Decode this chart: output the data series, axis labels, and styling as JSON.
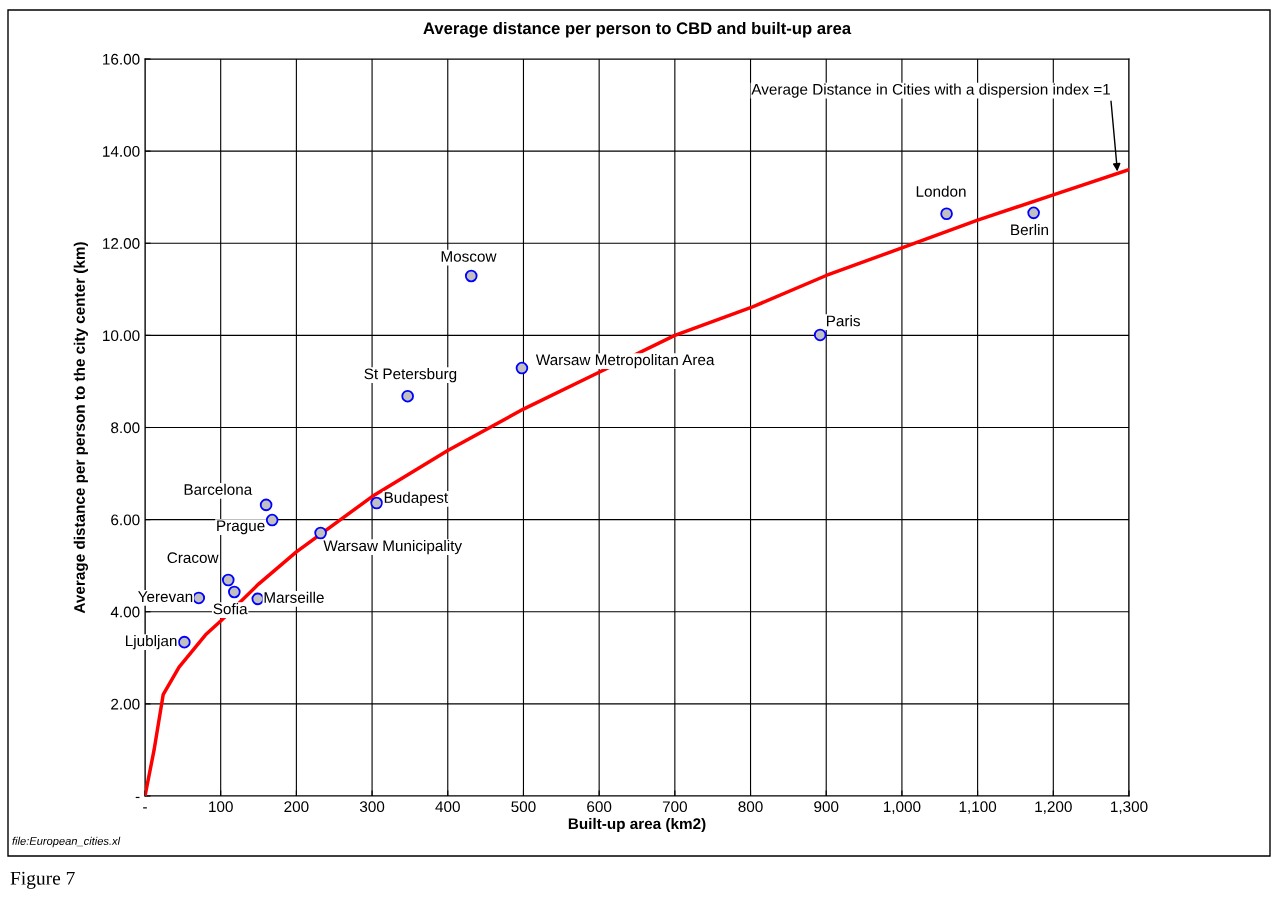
{
  "chart_data": {
    "type": "scatter",
    "title": "Average distance per person to CBD and built-up area",
    "xlabel": "Built-up area (km2)",
    "ylabel": "Average distance per person to the city center (km)",
    "xlim": [
      0,
      1300
    ],
    "ylim": [
      0,
      16
    ],
    "xticks": [
      {
        "value": 0,
        "label": "-"
      },
      100,
      200,
      300,
      400,
      500,
      600,
      700,
      800,
      900,
      {
        "value": 1000,
        "label": "1,000"
      },
      {
        "value": 1100,
        "label": "1,100"
      },
      {
        "value": 1200,
        "label": "1,200"
      },
      {
        "value": 1300,
        "label": "1,300"
      }
    ],
    "yticks": [
      {
        "value": 0,
        "label": "-"
      },
      {
        "value": 2,
        "label": "2.00"
      },
      {
        "value": 4,
        "label": "4.00"
      },
      {
        "value": 6,
        "label": "6.00"
      },
      {
        "value": 8,
        "label": "8.00"
      },
      {
        "value": 10,
        "label": "10.00"
      },
      {
        "value": 12,
        "label": "12.00"
      },
      {
        "value": 14,
        "label": "14.00"
      },
      {
        "value": 16,
        "label": "16.00"
      }
    ],
    "grid": true,
    "legend": false,
    "series": [
      {
        "color": "#c0c0c0",
        "marker": "circle",
        "x": [
          52,
          71,
          110,
          118,
          149,
          160,
          168,
          232,
          306,
          347,
          431,
          498,
          892,
          1059,
          1174
        ],
        "values": [
          3.34,
          4.3,
          4.69,
          4.43,
          4.28,
          6.32,
          5.99,
          5.71,
          6.36,
          8.68,
          11.29,
          9.29,
          10.01,
          12.64,
          12.66
        ]
      },
      {
        "type": "line",
        "color": "#ff0000",
        "line_style": "solid",
        "marker": "none",
        "x": [
          0,
          12,
          24,
          45,
          80,
          100,
          150,
          200,
          300,
          400,
          500,
          600,
          700,
          800,
          900,
          1000,
          1100,
          1200,
          1300
        ],
        "values": [
          0,
          1.0,
          2.2,
          2.8,
          3.5,
          3.8,
          4.6,
          5.3,
          6.5,
          7.5,
          8.4,
          9.2,
          10.0,
          10.6,
          11.3,
          11.9,
          12.5,
          13.05,
          13.6
        ]
      }
    ],
    "annotations": [
      {
        "text": "Ljubljan",
        "x": 52,
        "y": 3.34
      },
      {
        "text": "Yerevan",
        "x": 71,
        "y": 4.3
      },
      {
        "text": "Cracow",
        "x": 110,
        "y": 4.69
      },
      {
        "text": "Sofia",
        "x": 118,
        "y": 4.43
      },
      {
        "text": "Marseille",
        "x": 149,
        "y": 4.28
      },
      {
        "text": "Barcelona",
        "x": 160,
        "y": 6.32
      },
      {
        "text": "Prague",
        "x": 168,
        "y": 5.99
      },
      {
        "text": "Warsaw Municipality",
        "x": 232,
        "y": 5.71
      },
      {
        "text": "Budapest",
        "x": 306,
        "y": 6.36
      },
      {
        "text": "St Petersburg",
        "x": 347,
        "y": 8.68
      },
      {
        "text": "Moscow",
        "x": 431,
        "y": 11.29
      },
      {
        "text": "Warsaw Metropolitan Area",
        "x": 498,
        "y": 9.29
      },
      {
        "text": "Paris",
        "x": 892,
        "y": 10.01
      },
      {
        "text": "London",
        "x": 1059,
        "y": 12.64
      },
      {
        "text": "Berlin",
        "x": 1174,
        "y": 12.66
      },
      {
        "text": "Average Distance in Cities with a dispersion index =1",
        "x": 1285,
        "y": 13.5
      },
      "file:European_cities.xl",
      "Figure 7"
    ]
  }
}
